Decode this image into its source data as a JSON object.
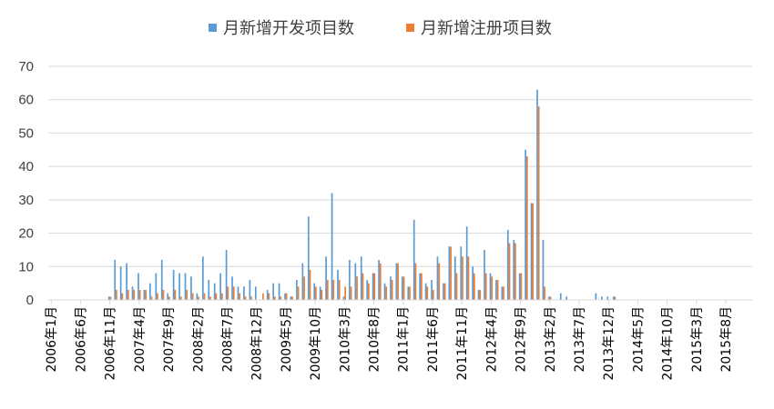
{
  "chart_data": {
    "type": "bar",
    "title": "",
    "xlabel": "",
    "ylabel": "",
    "ylim": [
      0,
      70
    ],
    "yticks": [
      0,
      10,
      20,
      30,
      40,
      50,
      60,
      70
    ],
    "grid": true,
    "legend_position": "top",
    "x_start": "2006-01",
    "x_end": "2015-12",
    "x_tick_labels": [
      "2006年1月",
      "2006年6月",
      "2006年11月",
      "2007年4月",
      "2007年9月",
      "2008年2月",
      "2008年7月",
      "2008年12月",
      "2009年5月",
      "2009年10月",
      "2010年3月",
      "2010年8月",
      "2011年1月",
      "2011年6月",
      "2011年11月",
      "2012年4月",
      "2012年9月",
      "2013年2月",
      "2013年7月",
      "2013年12月",
      "2014年5月",
      "2014年10月",
      "2015年3月",
      "2015年8月"
    ],
    "series": [
      {
        "name": "月新增开发项目数",
        "color": "#5B9BD5",
        "values": [
          0,
          0,
          0,
          0,
          0,
          0,
          0,
          0,
          0,
          0,
          1,
          12,
          10,
          11,
          4,
          8,
          3,
          5,
          8,
          12,
          2,
          9,
          8,
          8,
          7,
          2,
          13,
          6,
          5,
          8,
          15,
          7,
          4,
          4,
          6,
          4,
          0,
          3,
          5,
          5,
          2,
          1,
          6,
          11,
          25,
          5,
          4,
          13,
          32,
          9,
          1,
          12,
          11,
          13,
          6,
          8,
          12,
          5,
          7,
          11,
          7,
          4,
          24,
          8,
          5,
          6,
          13,
          5,
          16,
          13,
          16,
          22,
          10,
          3,
          15,
          8,
          6,
          4,
          21,
          18,
          8,
          45,
          29,
          63,
          18,
          1,
          0,
          2,
          1,
          0,
          0,
          0,
          0,
          2,
          1,
          1,
          1,
          0,
          0,
          0,
          0,
          0,
          0,
          0,
          0,
          0,
          0,
          0,
          0,
          0,
          0,
          0,
          0,
          0,
          0,
          0,
          0,
          0,
          0,
          0
        ]
      },
      {
        "name": "月新增注册项目数",
        "color": "#ED7D31",
        "values": [
          0,
          0,
          0,
          0,
          0,
          0,
          0,
          0,
          0,
          0,
          1,
          3,
          2,
          3,
          3,
          3,
          3,
          1,
          2,
          3,
          1,
          3,
          1,
          3,
          2,
          1,
          2,
          1,
          2,
          2,
          4,
          4,
          2,
          1,
          1,
          0,
          2,
          2,
          1,
          1,
          2,
          1,
          4,
          7,
          9,
          4,
          3,
          6,
          6,
          6,
          4,
          4,
          7,
          8,
          5,
          8,
          11,
          4,
          6,
          11,
          7,
          4,
          11,
          8,
          4,
          3,
          11,
          5,
          16,
          8,
          13,
          13,
          8,
          3,
          8,
          7,
          6,
          4,
          17,
          17,
          8,
          43,
          29,
          58,
          4,
          1,
          0,
          0,
          0,
          0,
          0,
          0,
          0,
          0,
          0,
          0,
          1,
          0,
          0,
          0,
          0,
          0,
          0,
          0,
          0,
          0,
          0,
          0,
          0,
          0,
          0,
          0,
          0,
          0,
          0,
          0,
          0,
          0,
          0,
          0
        ]
      }
    ]
  }
}
